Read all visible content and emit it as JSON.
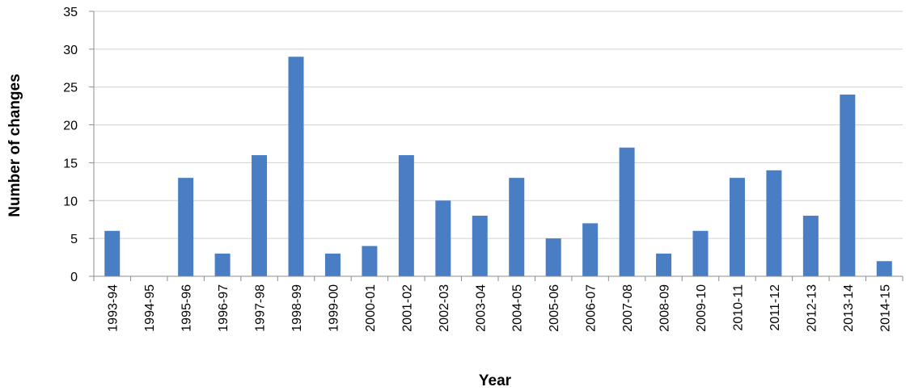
{
  "chart_data": {
    "type": "bar",
    "xlabel": "Year",
    "ylabel": "Number of changes",
    "ylim": [
      0,
      35
    ],
    "yticks": [
      0,
      5,
      10,
      15,
      20,
      25,
      30,
      35
    ],
    "grid": true,
    "categories": [
      "1993-94",
      "1994-95",
      "1995-96",
      "1996-97",
      "1997-98",
      "1998-99",
      "1999-00",
      "2000-01",
      "2001-02",
      "2002-03",
      "2003-04",
      "2004-05",
      "2005-06",
      "2006-07",
      "2007-08",
      "2008-09",
      "2009-10",
      "2010-11",
      "2011-12",
      "2012-13",
      "2013-14",
      "2014-15"
    ],
    "values": [
      6,
      0,
      13,
      3,
      16,
      29,
      3,
      4,
      16,
      10,
      8,
      13,
      5,
      7,
      17,
      3,
      6,
      13,
      14,
      8,
      24,
      2
    ],
    "bar_color": "#4a7ec4"
  }
}
